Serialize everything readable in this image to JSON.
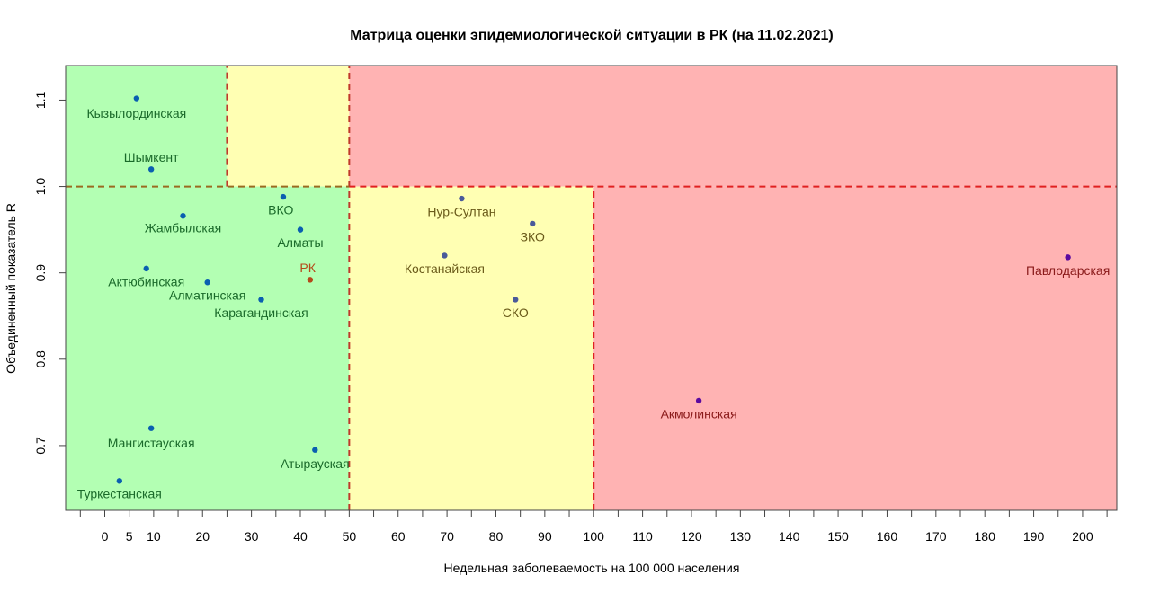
{
  "chart_data": {
    "type": "scatter",
    "title": "Матрица оценки эпидемиологической ситуации в РК (на 11.02.2021)",
    "xlabel": "Недельная заболеваемость на 100 000 населения",
    "ylabel": "Объединенный показатель R",
    "xlim": [
      -8,
      207
    ],
    "ylim": [
      0.625,
      1.14
    ],
    "x_ticks": [
      0,
      5,
      10,
      20,
      30,
      40,
      50,
      60,
      70,
      80,
      90,
      100,
      110,
      120,
      130,
      140,
      150,
      160,
      170,
      180,
      190,
      200
    ],
    "y_ticks": [
      0.7,
      0.8,
      0.9,
      1.0,
      1.1
    ],
    "y_tick_labels": [
      "0.7",
      "0.8",
      "0.9",
      "1.0",
      "1.1"
    ],
    "zones": [
      {
        "x": [
          -8,
          25
        ],
        "y": [
          1.0,
          1.14
        ],
        "color": "#b3ffb3"
      },
      {
        "x": [
          25,
          50
        ],
        "y": [
          1.0,
          1.14
        ],
        "color": "#ffffb3"
      },
      {
        "x": [
          50,
          207
        ],
        "y": [
          1.0,
          1.14
        ],
        "color": "#ffb3b3"
      },
      {
        "x": [
          -8,
          50
        ],
        "y": [
          0.625,
          1.0
        ],
        "color": "#b3ffb3"
      },
      {
        "x": [
          50,
          100
        ],
        "y": [
          0.625,
          1.0
        ],
        "color": "#ffffb3"
      },
      {
        "x": [
          100,
          207
        ],
        "y": [
          0.625,
          1.0
        ],
        "color": "#ffb3b3"
      }
    ],
    "threshold_lines": [
      {
        "x": [
          25,
          25
        ],
        "y": [
          1.0,
          1.14
        ],
        "color": "#c0392b"
      },
      {
        "x": [
          50,
          50
        ],
        "y": [
          0.625,
          1.14
        ],
        "color": "#c0392b"
      },
      {
        "x": [
          100,
          100
        ],
        "y": [
          0.625,
          1.0
        ],
        "color": "#e02020"
      },
      {
        "x": [
          -8,
          50
        ],
        "y": [
          1.0,
          1.0
        ],
        "color": "#9a6a20"
      },
      {
        "x": [
          50,
          207
        ],
        "y": [
          1.0,
          1.0
        ],
        "color": "#e02020"
      }
    ],
    "points": [
      {
        "label": "Кызылординская",
        "x": 6.5,
        "y": 1.102,
        "color": "#0a5fb0",
        "label_color": "#1a6a2a",
        "lx": 6.5,
        "ly": 1.085,
        "anchor": "middle"
      },
      {
        "label": "Шымкент",
        "x": 9.5,
        "y": 1.02,
        "color": "#0a5fb0",
        "label_color": "#1a6a2a",
        "lx": 9.5,
        "ly": 1.034,
        "anchor": "middle"
      },
      {
        "label": "ВКО",
        "x": 36.5,
        "y": 0.988,
        "color": "#0a5fb0",
        "label_color": "#1a6a2a",
        "lx": 36,
        "ly": 0.973,
        "anchor": "middle"
      },
      {
        "label": "Жамбылская",
        "x": 16,
        "y": 0.966,
        "color": "#0a5fb0",
        "label_color": "#1a6a2a",
        "lx": 16,
        "ly": 0.952,
        "anchor": "middle"
      },
      {
        "label": "Алматы",
        "x": 40,
        "y": 0.95,
        "color": "#0a5fb0",
        "label_color": "#1a6a2a",
        "lx": 40,
        "ly": 0.935,
        "anchor": "middle"
      },
      {
        "label": "РК",
        "x": 42,
        "y": 0.892,
        "color": "#b5491a",
        "label_color": "#b5491a",
        "lx": 41.5,
        "ly": 0.906,
        "anchor": "middle"
      },
      {
        "label": "Актюбинская",
        "x": 8.5,
        "y": 0.905,
        "color": "#0a5fb0",
        "label_color": "#1a6a2a",
        "lx": 8.5,
        "ly": 0.89,
        "anchor": "middle"
      },
      {
        "label": "Алматинская",
        "x": 21,
        "y": 0.889,
        "color": "#0a5fb0",
        "label_color": "#1a6a2a",
        "lx": 21,
        "ly": 0.874,
        "anchor": "middle"
      },
      {
        "label": "Карагандинская",
        "x": 32,
        "y": 0.869,
        "color": "#0a5fb0",
        "label_color": "#1a6a2a",
        "lx": 32,
        "ly": 0.854,
        "anchor": "middle"
      },
      {
        "label": "Мангистауская",
        "x": 9.5,
        "y": 0.72,
        "color": "#0a5fb0",
        "label_color": "#1a6a2a",
        "lx": 9.5,
        "ly": 0.703,
        "anchor": "middle"
      },
      {
        "label": "Атырауская",
        "x": 43,
        "y": 0.695,
        "color": "#0a5fb0",
        "label_color": "#1a6a2a",
        "lx": 43,
        "ly": 0.679,
        "anchor": "middle"
      },
      {
        "label": "Туркестанская",
        "x": 3,
        "y": 0.659,
        "color": "#0a5fb0",
        "label_color": "#1a6a2a",
        "lx": 3,
        "ly": 0.644,
        "anchor": "middle"
      },
      {
        "label": "Нур-Султан",
        "x": 73,
        "y": 0.986,
        "color": "#4a5a9a",
        "label_color": "#6a5a1a",
        "lx": 73,
        "ly": 0.971,
        "anchor": "middle"
      },
      {
        "label": "ЗКО",
        "x": 87.5,
        "y": 0.957,
        "color": "#4a5a9a",
        "label_color": "#6a5a1a",
        "lx": 87.5,
        "ly": 0.942,
        "anchor": "middle"
      },
      {
        "label": "Костанайская",
        "x": 69.5,
        "y": 0.92,
        "color": "#4a5a9a",
        "label_color": "#6a5a1a",
        "lx": 69.5,
        "ly": 0.905,
        "anchor": "middle"
      },
      {
        "label": "СКО",
        "x": 84,
        "y": 0.869,
        "color": "#4a5a9a",
        "label_color": "#6a5a1a",
        "lx": 84,
        "ly": 0.854,
        "anchor": "middle"
      },
      {
        "label": "Павлодарская",
        "x": 197,
        "y": 0.918,
        "color": "#5a0aa0",
        "label_color": "#8a1a1a",
        "lx": 197,
        "ly": 0.903,
        "anchor": "middle"
      },
      {
        "label": "Акмолинская",
        "x": 121.5,
        "y": 0.752,
        "color": "#5a0aa0",
        "label_color": "#8a1a1a",
        "lx": 121.5,
        "ly": 0.737,
        "anchor": "middle"
      }
    ]
  }
}
